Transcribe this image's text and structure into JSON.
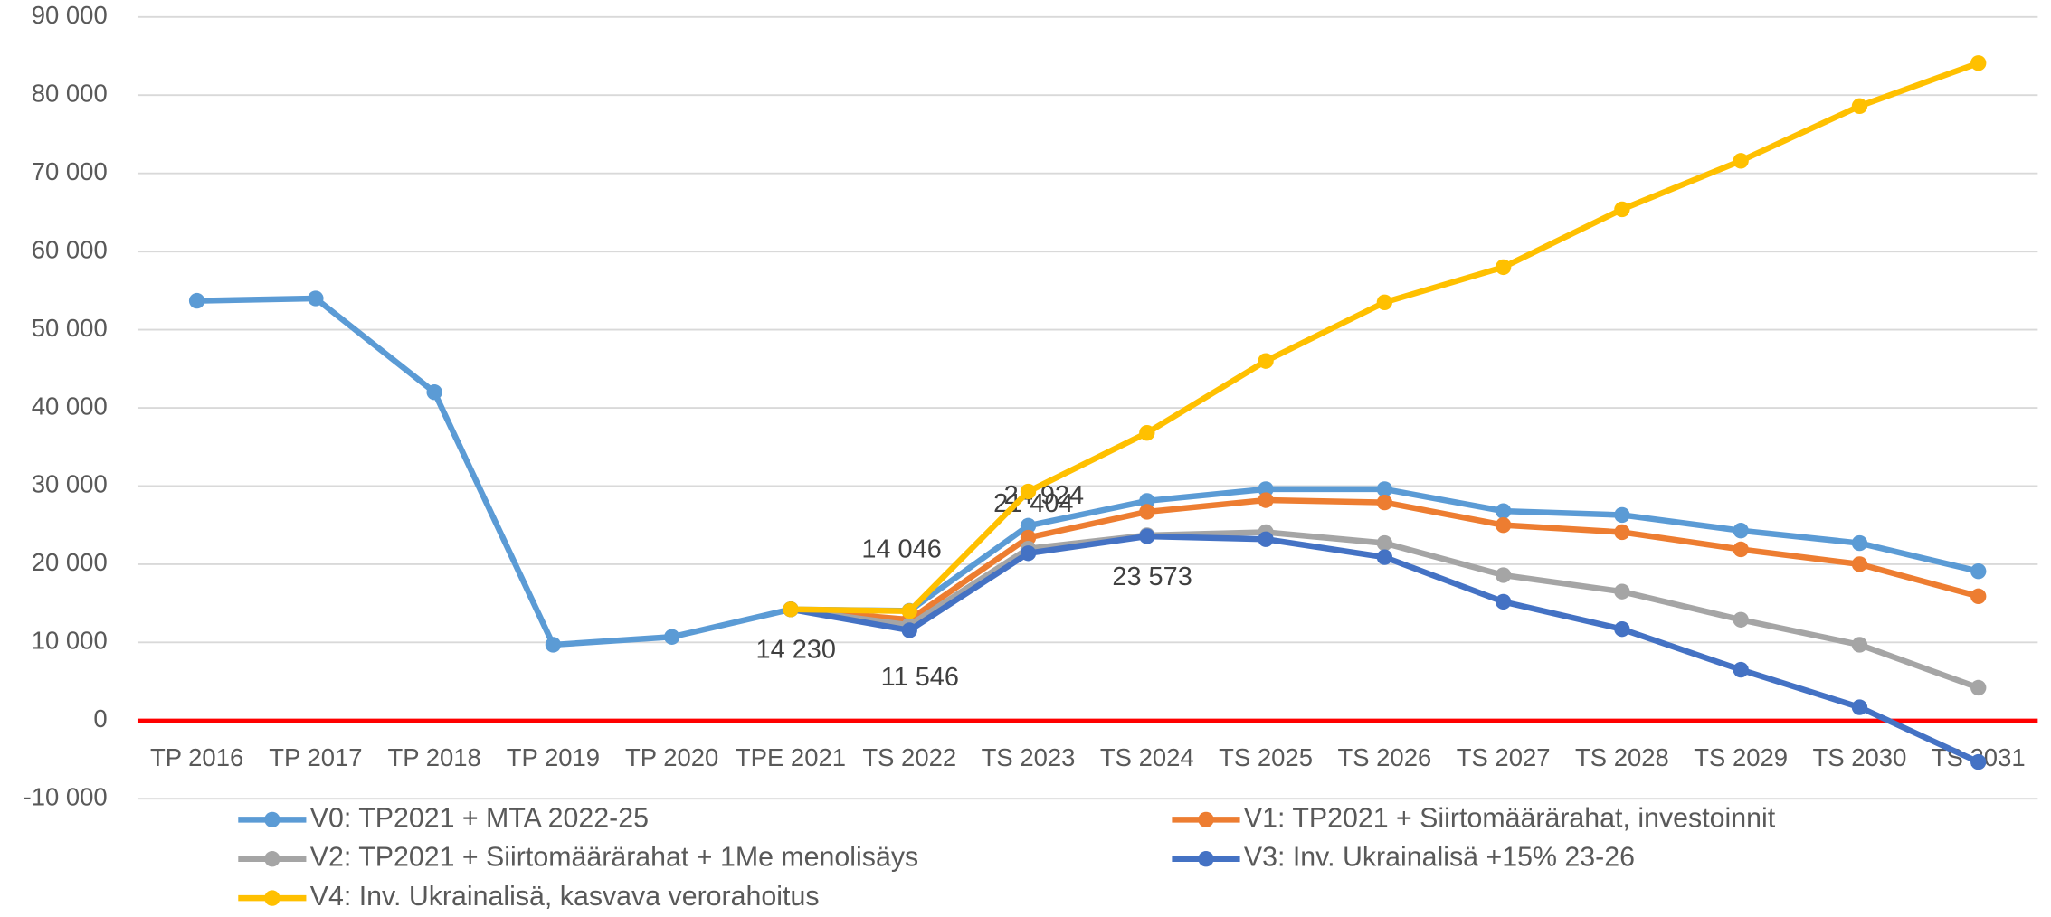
{
  "chart_data": {
    "type": "line",
    "categories": [
      "TP 2016",
      "TP 2017",
      "TP 2018",
      "TP 2019",
      "TP 2020",
      "TPE 2021",
      "TS 2022",
      "TS 2023",
      "TS 2024",
      "TS 2025",
      "TS 2026",
      "TS 2027",
      "TS 2028",
      "TS 2029",
      "TS 2030",
      "TS 2031"
    ],
    "series": [
      {
        "name": "V0: TP2021 + MTA 2022-25",
        "color": "#5b9bd5",
        "values": [
          53700,
          54000,
          42000,
          9700,
          10700,
          14230,
          14046,
          24924,
          28100,
          29600,
          29600,
          26800,
          26300,
          24300,
          22700,
          19100
        ],
        "value_labels": [
          null,
          null,
          null,
          null,
          null,
          "14 230",
          "14 046",
          "24 924",
          null,
          null,
          null,
          null,
          null,
          null,
          null,
          null
        ]
      },
      {
        "name": "V1: TP2021 + Siirtomäärärahat, investoinnit",
        "color": "#ed7d31",
        "values": [
          null,
          null,
          null,
          null,
          null,
          14230,
          12900,
          23400,
          26700,
          28200,
          27900,
          25000,
          24100,
          21900,
          20000,
          15900
        ]
      },
      {
        "name": "V2: TP2021 + Siirtomäärärahat + 1Me menolisäys",
        "color": "#a5a5a5",
        "values": [
          null,
          null,
          null,
          null,
          null,
          14230,
          12200,
          22000,
          23700,
          24100,
          22700,
          18600,
          16500,
          12900,
          9700,
          4200
        ]
      },
      {
        "name": "V3: Inv. Ukrainalisä +15% 23-26",
        "color": "#4472c4",
        "values": [
          null,
          null,
          null,
          null,
          null,
          14230,
          11546,
          21404,
          23573,
          23200,
          20900,
          15200,
          11700,
          6500,
          1700,
          -5300
        ],
        "value_labels": [
          null,
          null,
          null,
          null,
          null,
          null,
          "11 546",
          "21 404",
          "23 573",
          null,
          null,
          null,
          null,
          null,
          null,
          null
        ]
      },
      {
        "name": "V4: Inv. Ukrainalisä, kasvava verorahoitus",
        "color": "#ffc000",
        "values": [
          null,
          null,
          null,
          null,
          null,
          14230,
          14000,
          29300,
          36800,
          46000,
          53500,
          58000,
          65400,
          71600,
          78600,
          84100
        ]
      }
    ],
    "ylim": [
      -10000,
      90000
    ],
    "yticks": [
      {
        "value": -10000,
        "label": "-10 000"
      },
      0,
      {
        "value": 10000,
        "label": "10 000"
      },
      {
        "value": 20000,
        "label": "20 000"
      },
      {
        "value": 30000,
        "label": "30 000"
      },
      {
        "value": 40000,
        "label": "40 000"
      },
      {
        "value": 50000,
        "label": "50 000"
      },
      {
        "value": 60000,
        "label": "60 000"
      },
      {
        "value": 70000,
        "label": "70 000"
      },
      {
        "value": 80000,
        "label": "80 000"
      },
      {
        "value": 90000,
        "label": "90 000"
      }
    ],
    "grid": true,
    "zero_line_color": "#ff0000",
    "legend": "bottom"
  }
}
